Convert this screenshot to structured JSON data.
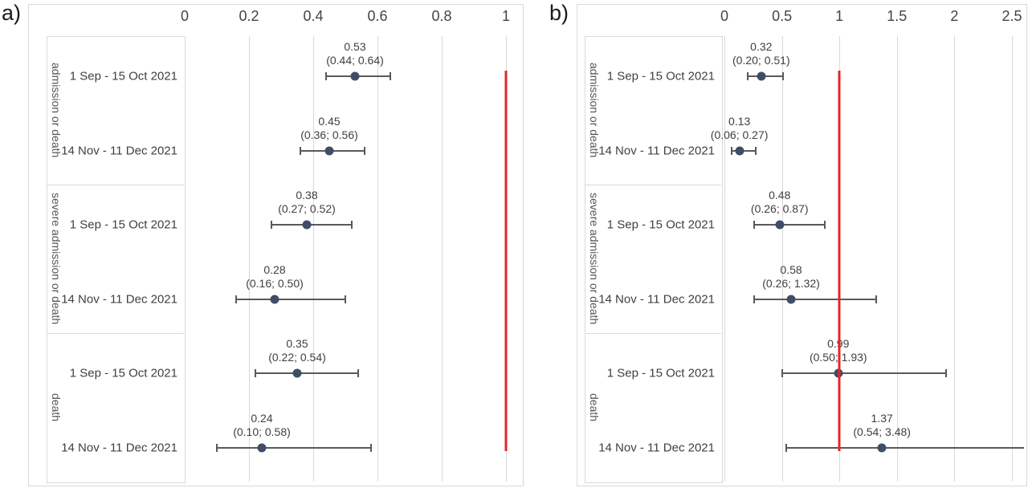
{
  "colors": {
    "marker": "#3f4e66",
    "whisker": "#595959",
    "grid": "#d9d9d9",
    "reference": "#e42528",
    "text": "#404040"
  },
  "chart_data": [
    {
      "type": "forest",
      "panel_label": "a)",
      "x_axis": {
        "min": 0,
        "max": 1,
        "tick_step": 0.2,
        "ticks": [
          {
            "v": 0,
            "label": "0"
          },
          {
            "v": 0.2,
            "label": "0.2"
          },
          {
            "v": 0.4,
            "label": "0.4"
          },
          {
            "v": 0.6,
            "label": "0.6"
          },
          {
            "v": 0.8,
            "label": "0.8"
          },
          {
            "v": 1,
            "label": "1"
          }
        ]
      },
      "reference_line": {
        "value": 1
      },
      "groups": [
        {
          "label": "admission or death",
          "rows": [
            {
              "period": "1 Sep - 15 Oct 2021",
              "estimate": 0.53,
              "ci_low": 0.44,
              "ci_high": 0.64,
              "value_label": "0.53",
              "ci_label": "(0.44; 0.64)"
            },
            {
              "period": "14 Nov - 11 Dec 2021",
              "estimate": 0.45,
              "ci_low": 0.36,
              "ci_high": 0.56,
              "value_label": "0.45",
              "ci_label": "(0.36; 0.56)"
            }
          ]
        },
        {
          "label": "severe admission or death",
          "rows": [
            {
              "period": "1 Sep - 15 Oct 2021",
              "estimate": 0.38,
              "ci_low": 0.27,
              "ci_high": 0.52,
              "value_label": "0.38",
              "ci_label": "(0.27; 0.52)"
            },
            {
              "period": "14 Nov - 11 Dec 2021",
              "estimate": 0.28,
              "ci_low": 0.16,
              "ci_high": 0.5,
              "value_label": "0.28",
              "ci_label": "(0.16; 0.50)"
            }
          ]
        },
        {
          "label": "death",
          "rows": [
            {
              "period": "1 Sep - 15 Oct 2021",
              "estimate": 0.35,
              "ci_low": 0.22,
              "ci_high": 0.54,
              "value_label": "0.35",
              "ci_label": "(0.22; 0.54)"
            },
            {
              "period": "14 Nov - 11 Dec 2021",
              "estimate": 0.24,
              "ci_low": 0.1,
              "ci_high": 0.58,
              "value_label": "0.24",
              "ci_label": "(0.10; 0.58)"
            }
          ]
        }
      ]
    },
    {
      "type": "forest",
      "panel_label": "b)",
      "x_axis": {
        "min": 0,
        "max": 2.5,
        "tick_step": 0.5,
        "ticks": [
          {
            "v": 0,
            "label": "0"
          },
          {
            "v": 0.5,
            "label": "0.5"
          },
          {
            "v": 1,
            "label": "1"
          },
          {
            "v": 1.5,
            "label": "1.5"
          },
          {
            "v": 2,
            "label": "2"
          },
          {
            "v": 2.5,
            "label": "2.5"
          }
        ]
      },
      "reference_line": {
        "value": 1
      },
      "groups": [
        {
          "label": "admission or death",
          "rows": [
            {
              "period": "1 Sep - 15 Oct 2021",
              "estimate": 0.32,
              "ci_low": 0.2,
              "ci_high": 0.51,
              "value_label": "0.32",
              "ci_label": "(0.20; 0.51)"
            },
            {
              "period": "14 Nov - 11 Dec 2021",
              "estimate": 0.13,
              "ci_low": 0.06,
              "ci_high": 0.27,
              "value_label": "0.13",
              "ci_label": "(0.06; 0.27)"
            }
          ]
        },
        {
          "label": "severe admission or death",
          "rows": [
            {
              "period": "1 Sep - 15 Oct 2021",
              "estimate": 0.48,
              "ci_low": 0.26,
              "ci_high": 0.87,
              "value_label": "0.48",
              "ci_label": "(0.26; 0.87)"
            },
            {
              "period": "14 Nov - 11 Dec 2021",
              "estimate": 0.58,
              "ci_low": 0.26,
              "ci_high": 1.32,
              "value_label": "0.58",
              "ci_label": "(0.26; 1.32)"
            }
          ]
        },
        {
          "label": "death",
          "rows": [
            {
              "period": "1 Sep - 15 Oct 2021",
              "estimate": 0.99,
              "ci_low": 0.5,
              "ci_high": 1.93,
              "value_label": "0.99",
              "ci_label": "(0.50; 1.93)"
            },
            {
              "period": "14 Nov - 11 Dec 2021",
              "estimate": 1.37,
              "ci_low": 0.54,
              "ci_high": 3.48,
              "value_label": "1.37",
              "ci_label": "(0.54; 3.48)"
            }
          ]
        }
      ]
    }
  ]
}
